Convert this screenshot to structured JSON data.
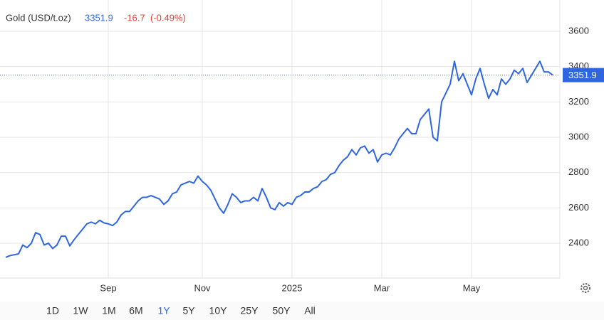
{
  "chart_data": {
    "type": "line",
    "title": "Gold (USD/t.oz)",
    "last": 3351.9,
    "change": -16.7,
    "change_label": "(-0.49%)",
    "categories": [
      null,
      null,
      null,
      null,
      null,
      null,
      null,
      null,
      null,
      null,
      null,
      null,
      null,
      null,
      null,
      null,
      null,
      null,
      null,
      null,
      null,
      null,
      null,
      null,
      "Sep",
      null,
      null,
      null,
      null,
      null,
      null,
      null,
      null,
      null,
      null,
      null,
      null,
      null,
      null,
      null,
      null,
      null,
      null,
      null,
      null,
      null,
      "Nov",
      null,
      null,
      null,
      null,
      null,
      null,
      null,
      null,
      null,
      null,
      null,
      null,
      null,
      null,
      null,
      null,
      null,
      null,
      null,
      null,
      "2025",
      null,
      null,
      null,
      null,
      null,
      null,
      null,
      null,
      null,
      null,
      null,
      null,
      null,
      null,
      null,
      null,
      null,
      null,
      null,
      null,
      "Mar",
      null,
      null,
      null,
      null,
      null,
      null,
      null,
      null,
      null,
      null,
      null,
      null,
      null,
      null,
      null,
      null,
      null,
      null,
      null,
      null,
      "May",
      null,
      null,
      null,
      null,
      null,
      null,
      null,
      null,
      null,
      null,
      null,
      null,
      null,
      null,
      null,
      null,
      null,
      null,
      null
    ],
    "series": [
      {
        "name": "Gold",
        "color": "#2f66e0",
        "values": [
          2320,
          2330,
          2335,
          2340,
          2390,
          2375,
          2400,
          2460,
          2450,
          2390,
          2400,
          2370,
          2390,
          2440,
          2440,
          2385,
          2420,
          2450,
          2480,
          2510,
          2520,
          2510,
          2530,
          2515,
          2510,
          2500,
          2520,
          2560,
          2580,
          2580,
          2610,
          2640,
          2660,
          2660,
          2670,
          2660,
          2650,
          2620,
          2640,
          2680,
          2690,
          2730,
          2740,
          2750,
          2740,
          2780,
          2750,
          2730,
          2700,
          2650,
          2600,
          2570,
          2620,
          2680,
          2660,
          2630,
          2640,
          2640,
          2660,
          2640,
          2710,
          2660,
          2600,
          2590,
          2630,
          2610,
          2630,
          2620,
          2660,
          2670,
          2690,
          2690,
          2710,
          2720,
          2750,
          2760,
          2790,
          2800,
          2840,
          2870,
          2890,
          2930,
          2900,
          2940,
          2950,
          2910,
          2930,
          2860,
          2900,
          2910,
          2900,
          2940,
          2990,
          3020,
          3050,
          3020,
          3020,
          3100,
          3130,
          3160,
          3000,
          2980,
          3200,
          3250,
          3300,
          3430,
          3320,
          3360,
          3300,
          3240,
          3330,
          3390,
          3300,
          3220,
          3270,
          3240,
          3330,
          3300,
          3330,
          3380,
          3360,
          3390,
          3310,
          3350,
          3390,
          3430,
          3370,
          3370,
          3351.9
        ]
      }
    ],
    "ylim": [
      2203,
      3777
    ],
    "yticks": [
      2400,
      2600,
      2800,
      3000,
      3200,
      3400,
      3600
    ],
    "grid": true,
    "ranges": [
      "1D",
      "1W",
      "1M",
      "6M",
      "1Y",
      "5Y",
      "10Y",
      "25Y",
      "50Y",
      "All"
    ],
    "selected_range_index": 4
  }
}
